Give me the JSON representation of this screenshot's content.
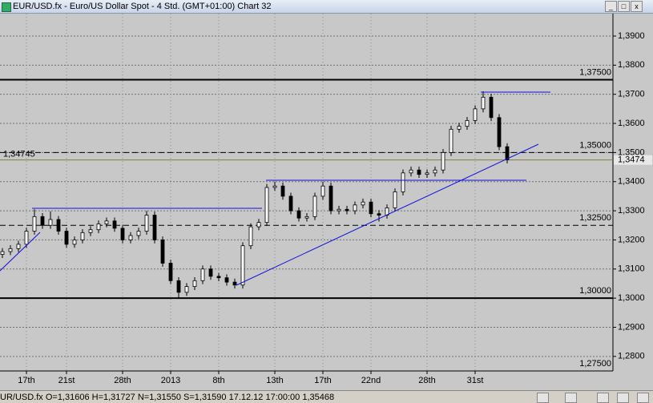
{
  "window_title": "EUR/USD.fx - Euro/US Dollar Spot - 4 Std. (GMT+01:00)   Chart 32",
  "status_text": "UR/USD.fx O=1,31606 H=1,31727 N=1,31550 S=1,31590   17.12.12 17:00:00 1,35468",
  "chart_data": {
    "type": "candlestick",
    "categories": [
      null,
      null,
      null,
      "17th",
      null,
      null,
      null,
      null,
      "21st",
      null,
      null,
      null,
      null,
      null,
      null,
      "28th",
      null,
      null,
      null,
      null,
      null,
      "2013",
      null,
      null,
      null,
      null,
      null,
      "8th",
      null,
      null,
      null,
      null,
      null,
      null,
      "13th",
      null,
      null,
      null,
      null,
      null,
      "17th",
      null,
      null,
      null,
      null,
      null,
      "22nd",
      null,
      null,
      null,
      null,
      null,
      null,
      "28th",
      null,
      null,
      null,
      null,
      null,
      "31st",
      null,
      null,
      null,
      null
    ],
    "open": [
      1.315,
      1.316,
      1.317,
      1.3185,
      1.323,
      1.328,
      1.325,
      1.327,
      1.323,
      1.3185,
      1.32,
      1.3225,
      1.3235,
      1.3255,
      1.3265,
      1.324,
      1.32,
      1.3215,
      1.323,
      1.3285,
      1.32,
      1.312,
      1.306,
      1.302,
      1.304,
      1.306,
      1.31,
      1.3075,
      1.307,
      1.3055,
      1.3045,
      1.318,
      1.3245,
      1.326,
      1.338,
      1.3385,
      1.335,
      1.33,
      1.3275,
      1.328,
      1.335,
      1.3385,
      1.33,
      1.3305,
      1.33,
      1.332,
      1.333,
      1.329,
      1.3285,
      1.331,
      1.3365,
      1.343,
      1.344,
      1.3425,
      1.343,
      1.344,
      1.35,
      1.358,
      1.359,
      1.361,
      1.365,
      1.369,
      1.362,
      1.352
    ],
    "high": [
      1.3172,
      1.3182,
      1.3197,
      1.3242,
      1.3305,
      1.3292,
      1.3298,
      1.3282,
      1.3242,
      1.3212,
      1.3237,
      1.3247,
      1.3267,
      1.3277,
      1.3277,
      1.3252,
      1.3227,
      1.3242,
      1.33,
      1.3297,
      1.3212,
      1.3132,
      1.3072,
      1.3052,
      1.3072,
      1.3112,
      1.3112,
      1.3087,
      1.3082,
      1.3067,
      1.3192,
      1.3257,
      1.3272,
      1.3392,
      1.34,
      1.3397,
      1.3362,
      1.3312,
      1.3292,
      1.3362,
      1.34,
      1.3397,
      1.3317,
      1.3317,
      1.3332,
      1.3342,
      1.3342,
      1.3302,
      1.3322,
      1.3377,
      1.3442,
      1.3452,
      1.3452,
      1.3442,
      1.3452,
      1.3512,
      1.3592,
      1.3602,
      1.3622,
      1.3662,
      1.371,
      1.3702,
      1.3632,
      1.3532
    ],
    "low": [
      1.3138,
      1.3148,
      1.3158,
      1.3173,
      1.3218,
      1.3238,
      1.3238,
      1.3218,
      1.3173,
      1.3173,
      1.3188,
      1.3213,
      1.3223,
      1.3243,
      1.3228,
      1.3188,
      1.3188,
      1.3203,
      1.3218,
      1.3188,
      1.3108,
      1.3048,
      1.3,
      1.3008,
      1.3028,
      1.3048,
      1.3063,
      1.3058,
      1.3043,
      1.3033,
      1.3033,
      1.3168,
      1.3233,
      1.3248,
      1.3368,
      1.3338,
      1.3288,
      1.3263,
      1.3263,
      1.3268,
      1.3338,
      1.3288,
      1.3288,
      1.3288,
      1.3288,
      1.3308,
      1.3278,
      1.3263,
      1.3273,
      1.3298,
      1.3353,
      1.3418,
      1.3413,
      1.3413,
      1.3418,
      1.3428,
      1.3488,
      1.3568,
      1.3578,
      1.3598,
      1.3638,
      1.3608,
      1.3508,
      1.3463
    ],
    "close": [
      1.316,
      1.317,
      1.3185,
      1.323,
      1.328,
      1.325,
      1.327,
      1.323,
      1.3185,
      1.32,
      1.3225,
      1.3235,
      1.3255,
      1.3265,
      1.324,
      1.32,
      1.3215,
      1.323,
      1.3285,
      1.32,
      1.312,
      1.306,
      1.302,
      1.304,
      1.306,
      1.31,
      1.3075,
      1.307,
      1.3055,
      1.3045,
      1.318,
      1.3245,
      1.326,
      1.338,
      1.3385,
      1.335,
      1.33,
      1.3275,
      1.328,
      1.335,
      1.3385,
      1.33,
      1.3305,
      1.33,
      1.332,
      1.333,
      1.329,
      1.3285,
      1.331,
      1.3365,
      1.343,
      1.344,
      1.3425,
      1.343,
      1.344,
      1.35,
      1.358,
      1.359,
      1.361,
      1.365,
      1.369,
      1.362,
      1.352,
      1.3475
    ],
    "up_color": "#ffffff",
    "down_color": "#000000",
    "ylim": [
      1.275,
      1.3977
    ],
    "yticks": [
      {
        "value": 1.28,
        "label": "1,2800"
      },
      {
        "value": 1.29,
        "label": "1,2900"
      },
      {
        "value": 1.3,
        "label": "1,3000"
      },
      {
        "value": 1.31,
        "label": "1,3100"
      },
      {
        "value": 1.32,
        "label": "1,3200"
      },
      {
        "value": 1.33,
        "label": "1,3300"
      },
      {
        "value": 1.34,
        "label": "1,3400"
      },
      {
        "value": 1.35,
        "label": "1,3500"
      },
      {
        "value": 1.36,
        "label": "1,3600"
      },
      {
        "value": 1.37,
        "label": "1,3700"
      },
      {
        "value": 1.38,
        "label": "1,3800"
      },
      {
        "value": 1.39,
        "label": "1,3900"
      }
    ],
    "levels": [
      {
        "value": 1.375,
        "label": "1,37500"
      },
      {
        "value": 1.35,
        "label": "1,35000"
      },
      {
        "value": 1.325,
        "label": "1,32500"
      },
      {
        "value": 1.3,
        "label": "1,30000"
      },
      {
        "value": 1.275,
        "label": "1,27500"
      }
    ],
    "current_price": {
      "value": 1.34745,
      "label": "1,34745",
      "axis_label": "1,3474",
      "color": "#808040"
    },
    "grid": true
  }
}
